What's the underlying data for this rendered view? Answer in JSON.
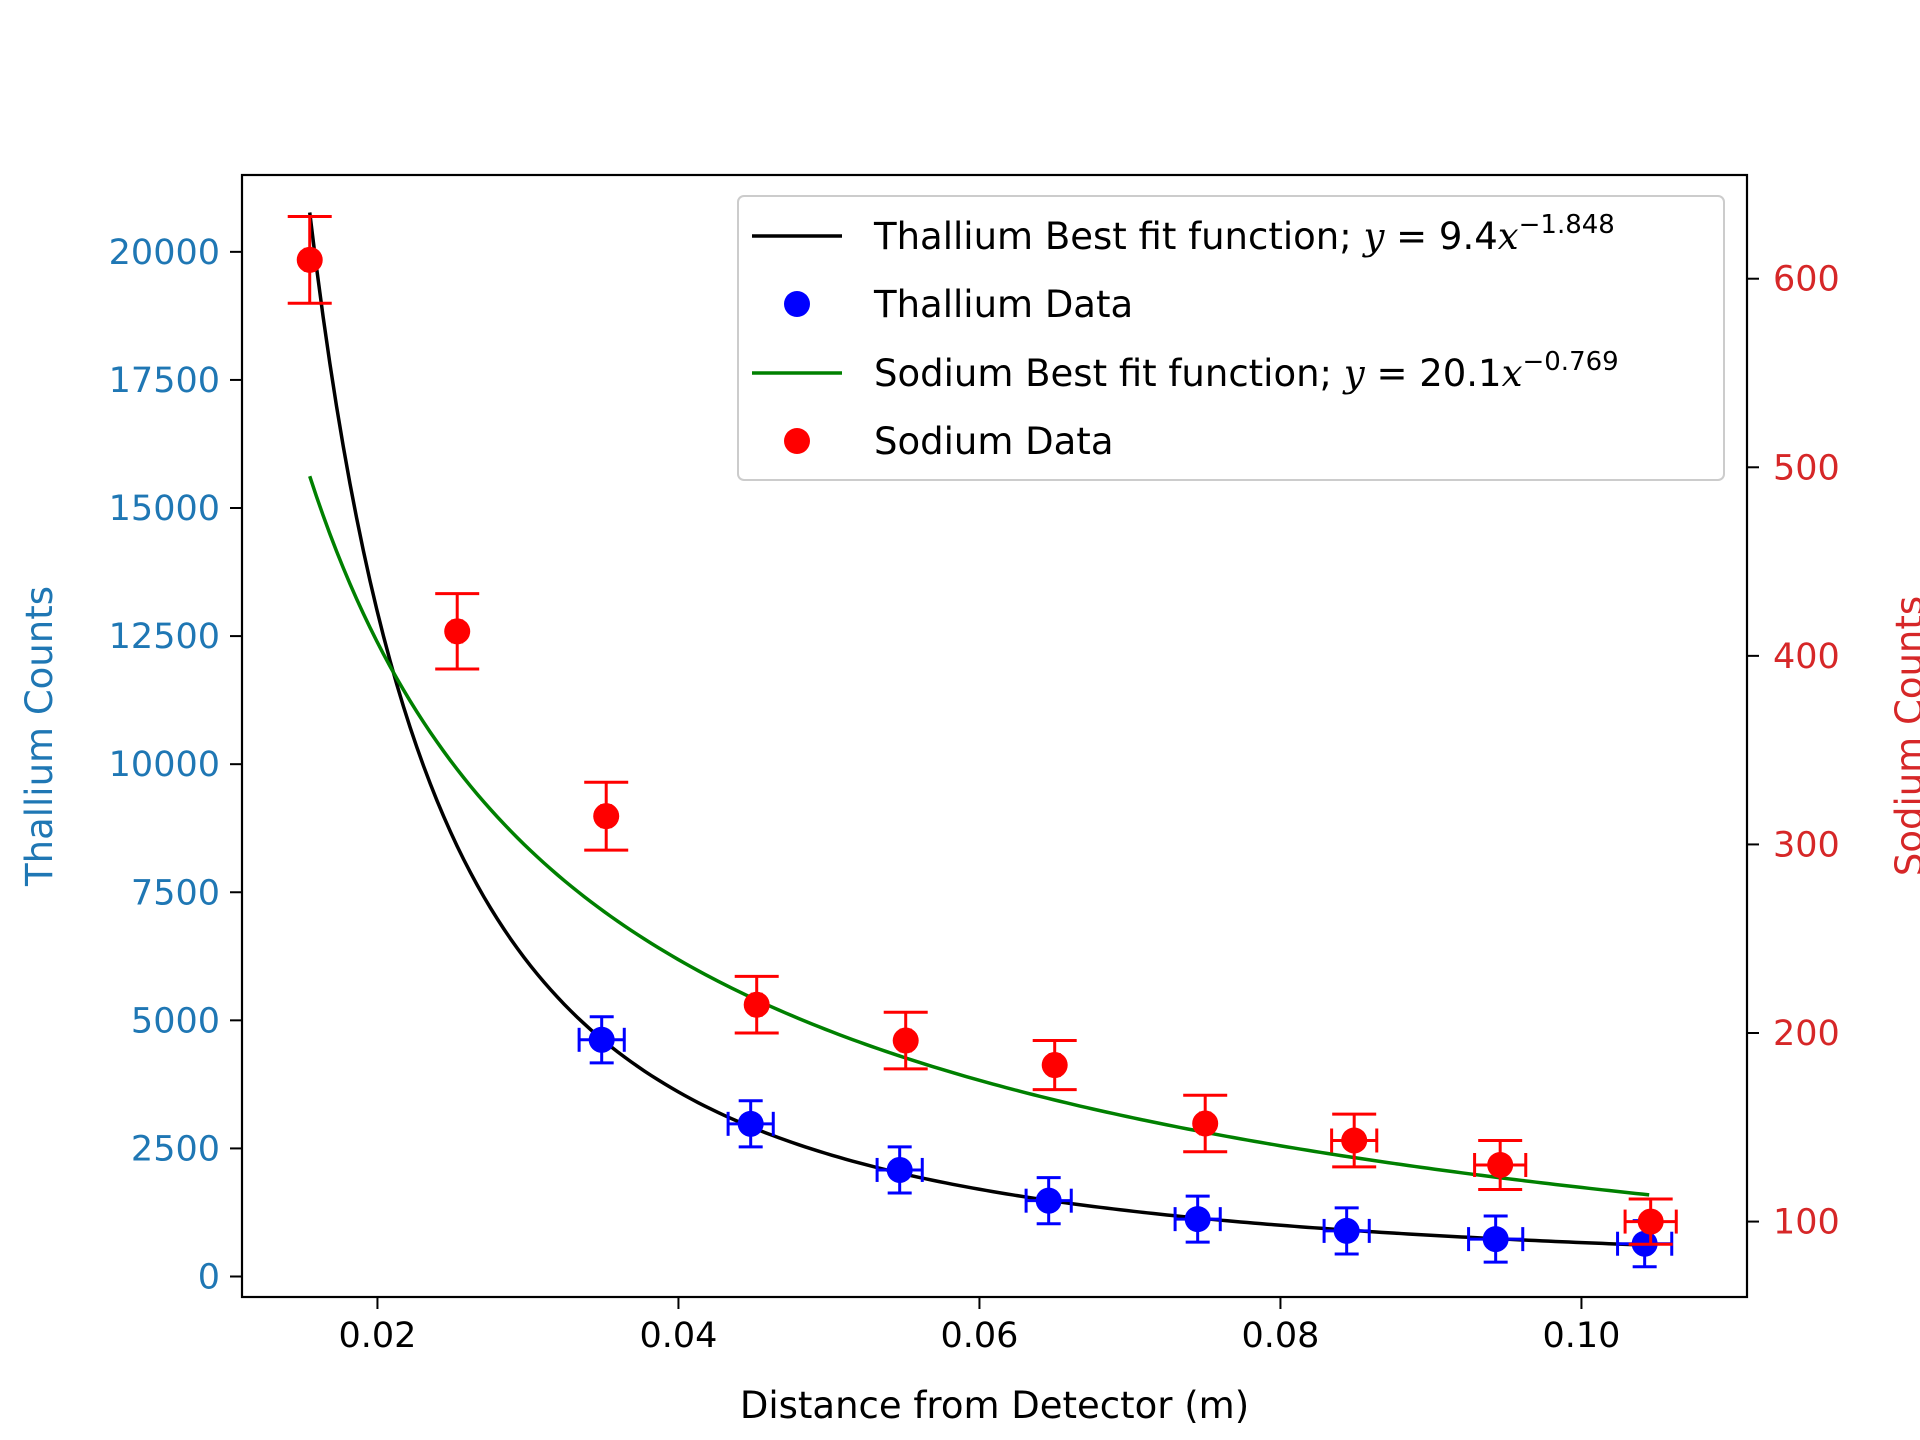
{
  "chart_data": {
    "type": "scatter",
    "xlabel": "Distance from Detector (m)",
    "ylabel_left": "Thallium Counts",
    "ylabel_right": "Sodium Counts",
    "xlim": [
      0.011,
      0.111
    ],
    "ylim_left": [
      -400,
      21500
    ],
    "ylim_right": [
      60,
      655
    ],
    "x_ticks": [
      "0.02",
      "0.04",
      "0.06",
      "0.08",
      "0.10"
    ],
    "y_ticks_left": [
      "0",
      "2500",
      "5000",
      "7500",
      "10000",
      "12500",
      "15000",
      "17500",
      "20000"
    ],
    "y_ticks_right": [
      "100",
      "200",
      "300",
      "400",
      "500",
      "600"
    ],
    "colors": {
      "thallium_fit": "#000000",
      "thallium_data": "#0000ff",
      "sodium_fit": "#008000",
      "sodium_data": "#ff0000",
      "left_axis": "#1f77b4",
      "right_axis": "#d62728"
    },
    "legend": {
      "placement": "upper right",
      "entries": [
        {
          "name": "Thallium Best fit function; ",
          "eq": "y",
          "eq_rest": " = 9.4",
          "eq_x": "x",
          "exp": "−1.848"
        },
        {
          "name": "Thallium Data"
        },
        {
          "name": "Sodium Best fit function; ",
          "eq": "y",
          "eq_rest": " = 20.1",
          "eq_x": "x",
          "exp": "−0.769"
        },
        {
          "name": "Sodium Data"
        }
      ]
    },
    "series": [
      {
        "name": "Thallium Best fit function",
        "kind": "fit",
        "axis": "left",
        "coefficient": 9.4,
        "exponent": -1.848,
        "x_range": [
          0.0155,
          0.1045
        ]
      },
      {
        "name": "Thallium Data",
        "kind": "data",
        "axis": "left",
        "points": [
          {
            "x": 0.0349,
            "y": 4620,
            "xerr": 0.0015,
            "yerr": 450
          },
          {
            "x": 0.0448,
            "y": 2980,
            "xerr": 0.0015,
            "yerr": 450
          },
          {
            "x": 0.0547,
            "y": 2080,
            "xerr": 0.0015,
            "yerr": 450
          },
          {
            "x": 0.0646,
            "y": 1480,
            "xerr": 0.0015,
            "yerr": 450
          },
          {
            "x": 0.0745,
            "y": 1120,
            "xerr": 0.0015,
            "yerr": 450
          },
          {
            "x": 0.0844,
            "y": 890,
            "xerr": 0.0015,
            "yerr": 450
          },
          {
            "x": 0.0943,
            "y": 730,
            "xerr": 0.0018,
            "yerr": 450
          },
          {
            "x": 0.1042,
            "y": 640,
            "xerr": 0.0018,
            "yerr": 450
          }
        ]
      },
      {
        "name": "Sodium Best fit function",
        "kind": "fit",
        "axis": "right",
        "coefficient": 20.1,
        "exponent": -0.769,
        "x_range": [
          0.0155,
          0.1045
        ]
      },
      {
        "name": "Sodium Data",
        "kind": "data",
        "axis": "right",
        "points": [
          {
            "x": 0.0155,
            "y": 610,
            "xerr": 0.0003,
            "yerr": 23
          },
          {
            "x": 0.0253,
            "y": 413,
            "xerr": 0.0003,
            "yerr": 20
          },
          {
            "x": 0.0352,
            "y": 315,
            "xerr": 0.0003,
            "yerr": 18
          },
          {
            "x": 0.0452,
            "y": 215,
            "xerr": 0.0003,
            "yerr": 15
          },
          {
            "x": 0.0551,
            "y": 196,
            "xerr": 0.0003,
            "yerr": 15
          },
          {
            "x": 0.065,
            "y": 183,
            "xerr": 0.0003,
            "yerr": 13
          },
          {
            "x": 0.075,
            "y": 152,
            "xerr": 0.0003,
            "yerr": 15
          },
          {
            "x": 0.0849,
            "y": 143,
            "xerr": 0.0015,
            "yerr": 14
          },
          {
            "x": 0.0946,
            "y": 130,
            "xerr": 0.0017,
            "yerr": 13
          },
          {
            "x": 0.1046,
            "y": 100,
            "xerr": 0.0017,
            "yerr": 12
          }
        ]
      }
    ]
  }
}
